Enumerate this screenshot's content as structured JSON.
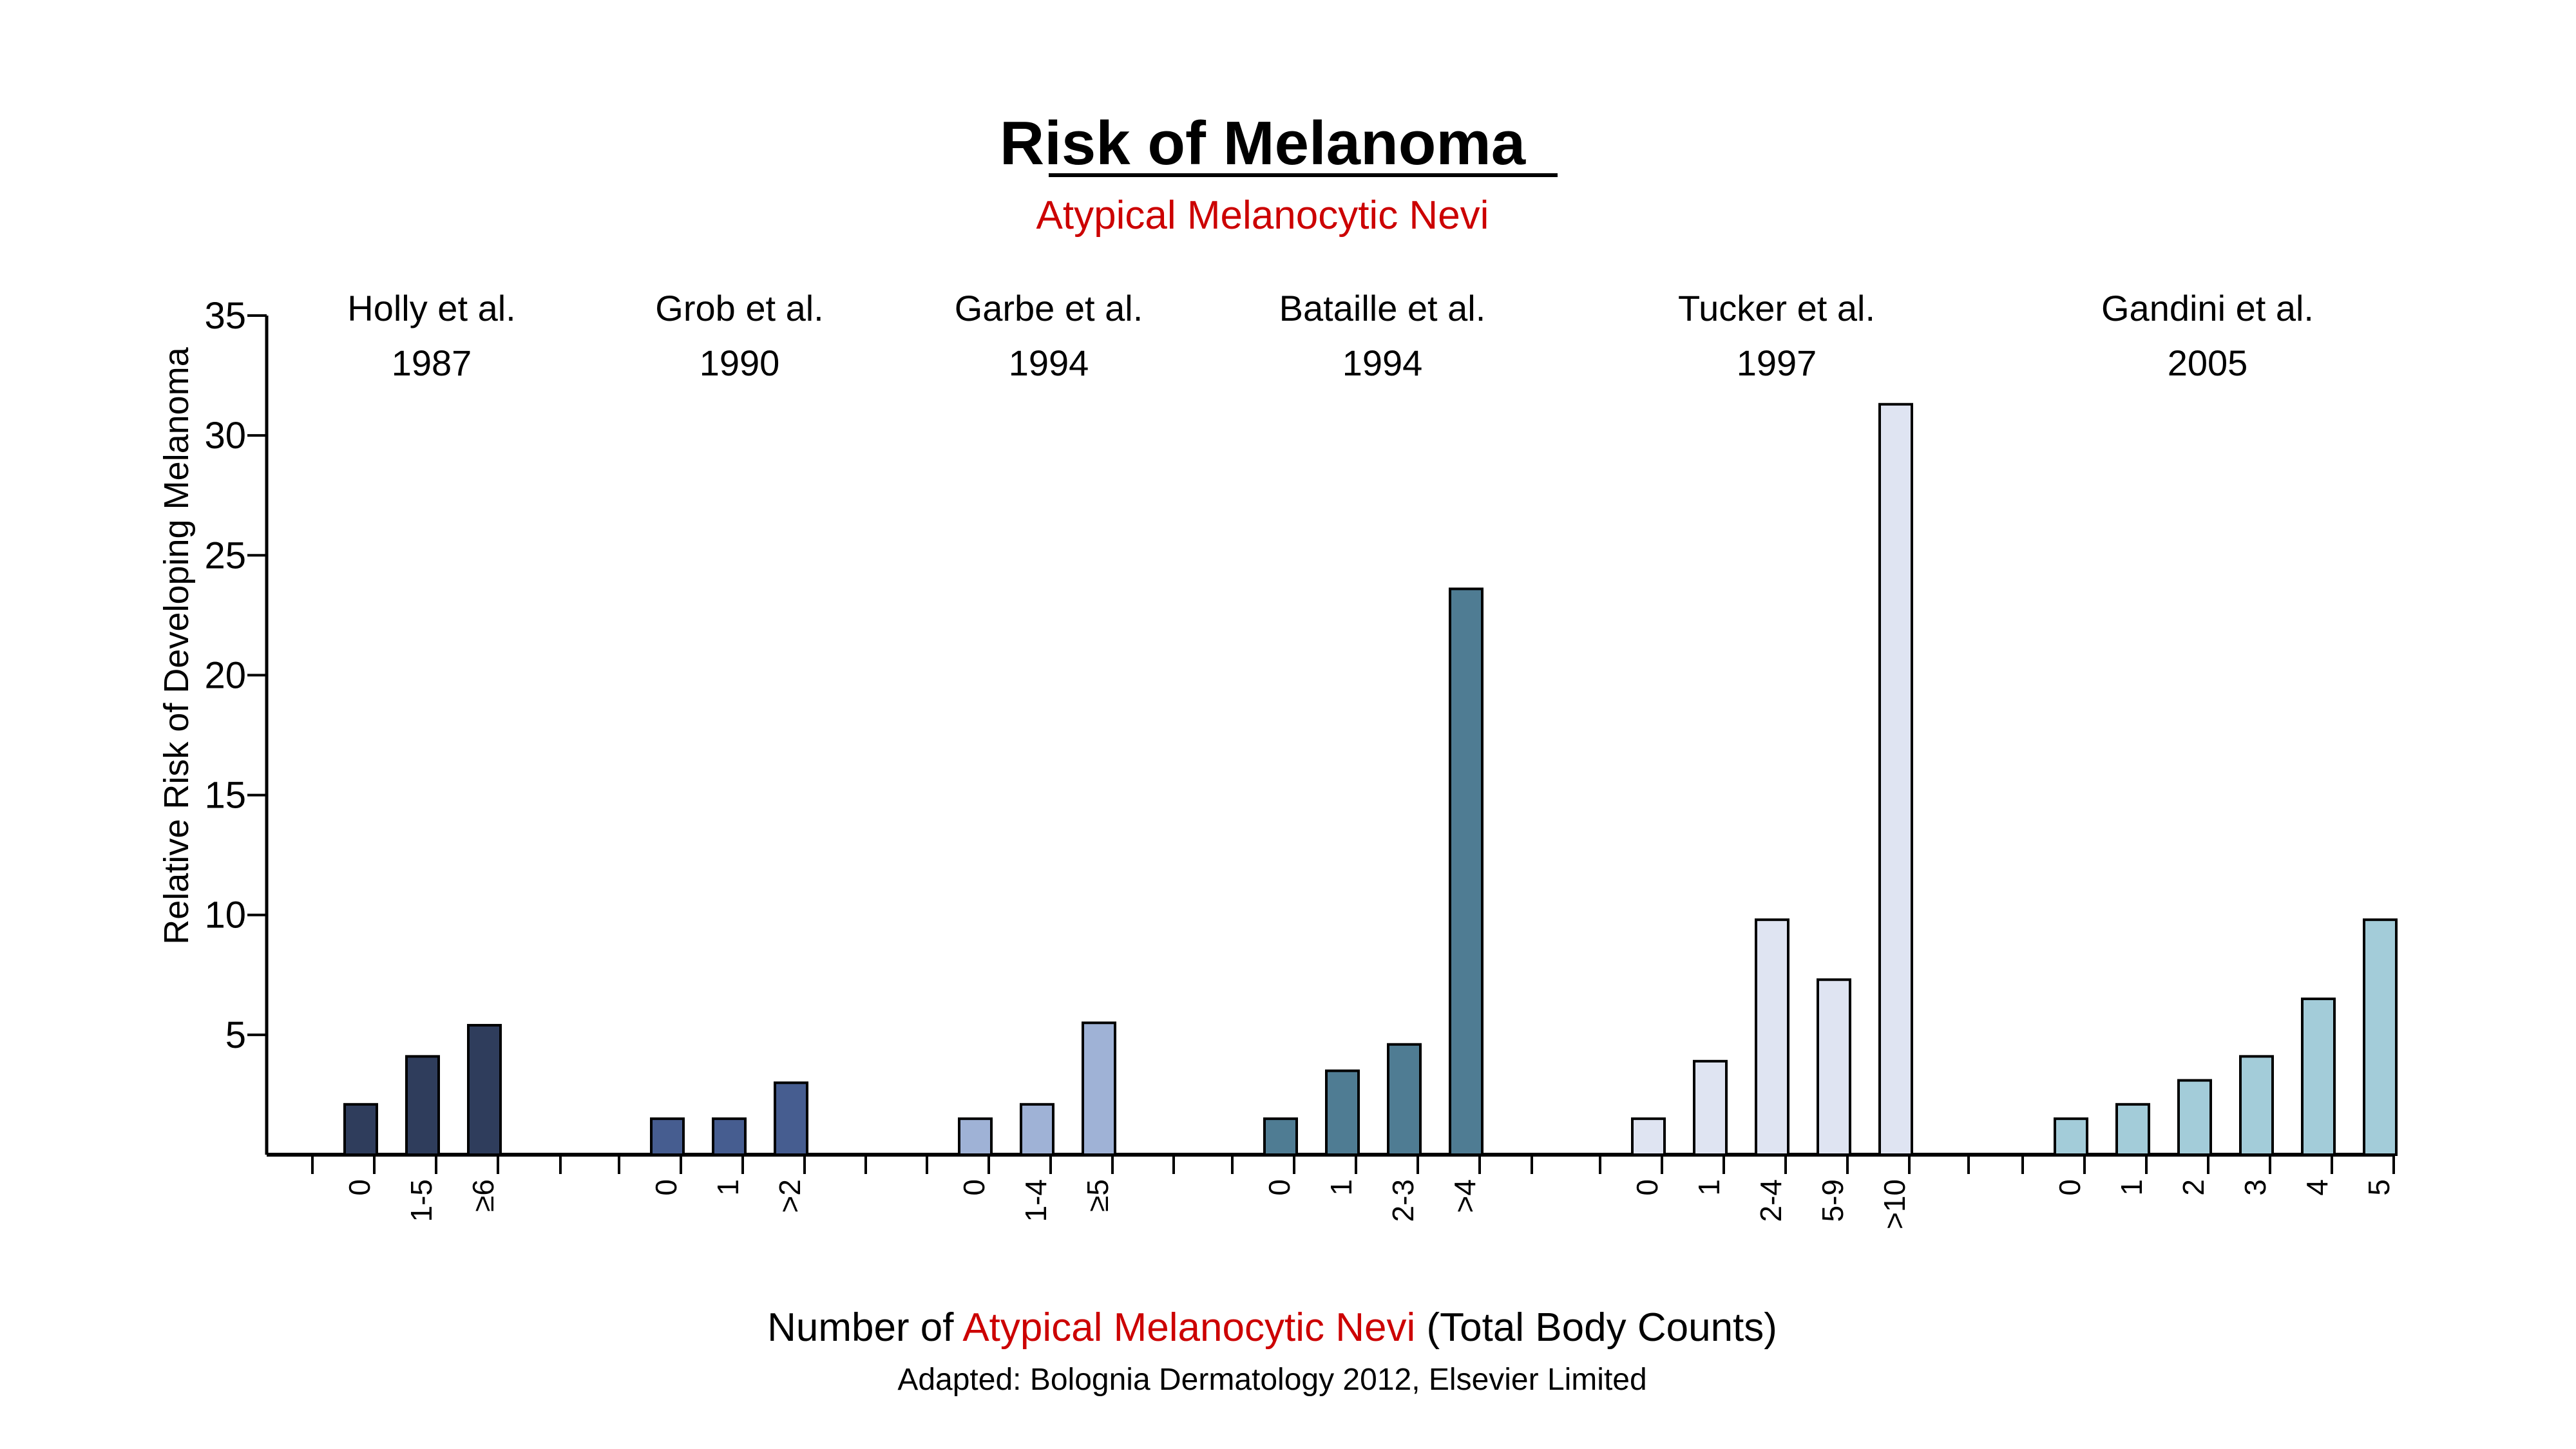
{
  "header": {
    "title": "Risk of Melanoma",
    "subtitle": "Atypical Melanocytic Nevi"
  },
  "axis_labels": {
    "y": "Relative Risk of Developing Melanoma",
    "x_part1": "Number of ",
    "x_part2": "Atypical Melanocytic Nevi",
    "x_part3": " (Total Body Counts)"
  },
  "source": "Adapted: Bolognia Dermatology 2012, Elsevier Limited",
  "colors": {
    "accent_red": "#cc0000",
    "holly": "#2f3d5c",
    "grob": "#465d90",
    "garbe": "#9fb2d6",
    "bataille": "#4f7c93",
    "tucker": "#dfe4f2",
    "gandini": "#a3ccd9"
  },
  "chart_data": {
    "type": "bar",
    "title": "Risk of Melanoma",
    "subtitle": "Atypical Melanocytic Nevi",
    "xlabel": "Number of Atypical Melanocytic Nevi (Total Body Counts)",
    "ylabel": "Relative Risk of Developing Melanoma",
    "ylim": [
      0,
      35
    ],
    "yticks": [
      5,
      10,
      15,
      20,
      25,
      30,
      35
    ],
    "grid": false,
    "series": [
      {
        "study": "Holly et al.",
        "year": "1987",
        "color": "#2f3d5c",
        "categories": [
          "0",
          "1-5",
          "≥6"
        ],
        "values": [
          2.1,
          4.1,
          5.4
        ]
      },
      {
        "study": "Grob et al.",
        "year": "1990",
        "color": "#465d90",
        "categories": [
          "0",
          "1",
          ">2"
        ],
        "values": [
          1.5,
          1.5,
          3.0
        ]
      },
      {
        "study": "Garbe et al.",
        "year": "1994",
        "color": "#9fb2d6",
        "categories": [
          "0",
          "1-4",
          "≥5"
        ],
        "values": [
          1.5,
          2.1,
          5.5
        ]
      },
      {
        "study": "Bataille et al.",
        "year": "1994",
        "color": "#4f7c93",
        "categories": [
          "0",
          "1",
          "2-3",
          ">4"
        ],
        "values": [
          1.5,
          3.5,
          4.6,
          23.6
        ]
      },
      {
        "study": "Tucker et al.",
        "year": "1997",
        "color": "#dfe4f2",
        "categories": [
          "0",
          "1",
          "2-4",
          "5-9",
          ">10"
        ],
        "values": [
          1.5,
          3.9,
          9.8,
          7.3,
          31.3
        ]
      },
      {
        "study": "Gandini et al.",
        "year": "2005",
        "color": "#a3ccd9",
        "categories": [
          "0",
          "1",
          "2",
          "3",
          "4",
          "5"
        ],
        "values": [
          1.5,
          2.1,
          3.1,
          4.1,
          6.5,
          9.8
        ]
      }
    ]
  }
}
